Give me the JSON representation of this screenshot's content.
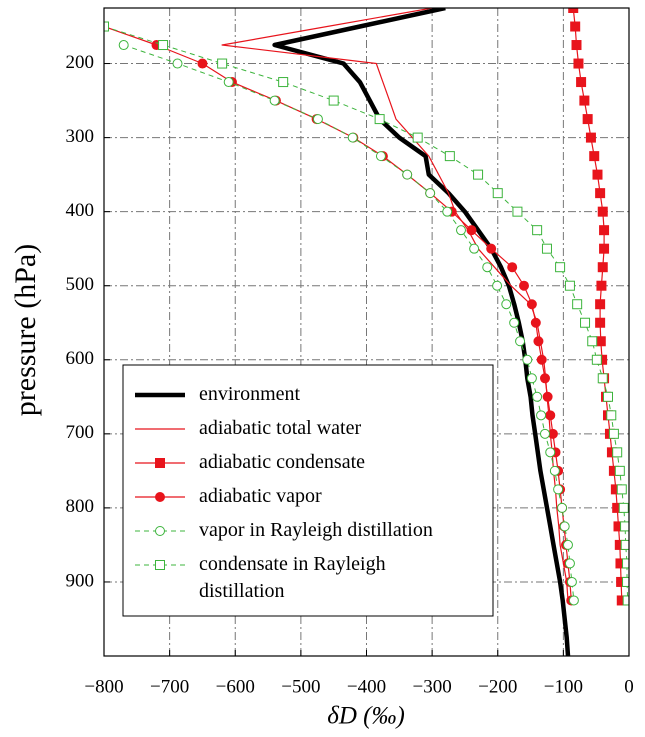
{
  "chart_data": {
    "type": "line",
    "x_label": "δD (‰)",
    "y_label": "pressure (hPa)",
    "xlim": [
      -800,
      0
    ],
    "xticks": [
      {
        "value": -800,
        "label": "−800"
      },
      {
        "value": -700,
        "label": "−700"
      },
      {
        "value": -600,
        "label": "−600"
      },
      {
        "value": -500,
        "label": "−500"
      },
      {
        "value": -400,
        "label": "−400"
      },
      {
        "value": -300,
        "label": "−300"
      },
      {
        "value": -200,
        "label": "−200"
      },
      {
        "value": -100,
        "label": "−100"
      },
      0
    ],
    "ylim": [
      1000,
      125
    ],
    "yticks": [
      200,
      300,
      400,
      500,
      600,
      700,
      800,
      900
    ],
    "grid": true,
    "legend": "lower left",
    "pressure": [
      125,
      150,
      175,
      200,
      225,
      250,
      275,
      300,
      325,
      350,
      375,
      400,
      425,
      450,
      475,
      500,
      525,
      550,
      575,
      600,
      625,
      650,
      675,
      700,
      725,
      750,
      775,
      800,
      825,
      850,
      875,
      900,
      925,
      950,
      975,
      1000
    ],
    "series": [
      {
        "name": "environment",
        "color": "#000000",
        "line": "thick",
        "values": [
          -280,
          -410,
          -540,
          -435,
          -410,
          -395,
          -380,
          -350,
          -310,
          -305,
          -275,
          -250,
          -230,
          -210,
          -195,
          -183,
          -175,
          -168,
          -162,
          -158,
          -155,
          -150,
          -147,
          -143,
          -139,
          -135,
          -130,
          -125,
          -120,
          -115,
          -110,
          -105,
          -101,
          -98,
          -95,
          -93
        ]
      },
      {
        "name": "adiabatic total water",
        "color": "#e8141c",
        "line": "solid",
        "values": [
          -300,
          -460,
          -620,
          -385,
          -375,
          -365,
          -355,
          -330,
          -305,
          -290,
          -275,
          -265,
          -245,
          -230,
          -205,
          -180,
          -150,
          -140,
          -135,
          -130,
          -127,
          -125,
          -122,
          -120,
          -117,
          -115,
          -112,
          -110,
          -107,
          -105,
          -100,
          -95,
          -93,
          null,
          null,
          null
        ]
      },
      {
        "name": "adiabatic condensate",
        "color": "#e8141c",
        "line": "solid",
        "marker": "square",
        "marker_filled": true,
        "values": [
          -85,
          -82,
          -80,
          -77,
          -73,
          -68,
          -63,
          -58,
          -53,
          -48,
          -44,
          -40,
          -38,
          -38,
          -40,
          -42,
          -44,
          -44,
          -43,
          -41,
          -38,
          -35,
          -32,
          -29,
          -26,
          -23,
          -20,
          -18,
          -16,
          -14,
          -13,
          -12,
          -11,
          null,
          null,
          null
        ]
      },
      {
        "name": "adiabatic vapor",
        "color": "#e8141c",
        "line": "solid",
        "marker": "circle",
        "marker_filled": true,
        "values": [
          null,
          -800,
          -720,
          -650,
          -605,
          -538,
          -476,
          -420,
          -375,
          -338,
          -303,
          -270,
          -240,
          -210,
          -178,
          -160,
          -148,
          -142,
          -138,
          -133,
          -128,
          -124,
          -120,
          -116,
          -112,
          -108,
          -105,
          -102,
          -99,
          -96,
          -93,
          -90,
          -88,
          null,
          null,
          null
        ]
      },
      {
        "name": "vapor in Rayleigh distillation",
        "color": "#3cb43c",
        "line": "dashed",
        "marker": "circle",
        "marker_filled": false,
        "values": [
          null,
          null,
          -770,
          -688,
          -610,
          -540,
          -474,
          -421,
          -378,
          -338,
          -303,
          -277,
          -256,
          -236,
          -216,
          -201,
          -187,
          -175,
          -166,
          -155,
          -148,
          -140,
          -134,
          -128,
          -120,
          -113,
          -108,
          -102,
          -98,
          -93,
          -90,
          -87,
          -84,
          null,
          null,
          null
        ]
      },
      {
        "name": "condensate in Rayleigh distillation",
        "color": "#3cb43c",
        "line": "dashed",
        "marker": "square",
        "marker_filled": false,
        "values": [
          null,
          -800,
          -710,
          -620,
          -527,
          -450,
          -380,
          -322,
          -273,
          -230,
          -200,
          -170,
          -140,
          -125,
          -105,
          -90,
          -79,
          -67,
          -56,
          -49,
          -40,
          -32,
          -27,
          -23,
          -18,
          -14,
          -11,
          -8,
          -6,
          -5,
          -3,
          -3,
          -2,
          null,
          null,
          null
        ]
      }
    ]
  }
}
